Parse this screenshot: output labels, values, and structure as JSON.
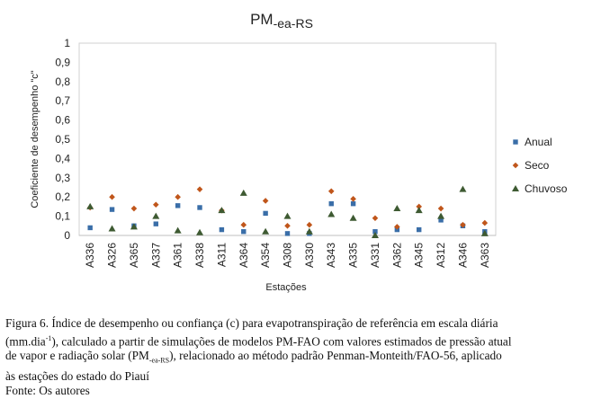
{
  "chart_data": {
    "type": "scatter",
    "title": "PM",
    "title_sub": "-ea-RS",
    "xlabel": "Estações",
    "ylabel": "Coeficiente de desempenho \"c\"",
    "ylim": [
      0,
      1
    ],
    "yticks": [
      "0",
      "0,1",
      "0,2",
      "0,3",
      "0,4",
      "0,5",
      "0,6",
      "0,7",
      "0,8",
      "0,9",
      "1"
    ],
    "legend_position": "right",
    "grid": false,
    "categories": [
      "A336",
      "A326",
      "A365",
      "A337",
      "A361",
      "A338",
      "A311",
      "A364",
      "A354",
      "A308",
      "A330",
      "A343",
      "A335",
      "A331",
      "A362",
      "A345",
      "A312",
      "A346",
      "A363"
    ],
    "series": [
      {
        "name": "Anual",
        "marker": "square",
        "color": "#3a6ea8",
        "values": [
          0.04,
          0.135,
          0.05,
          0.06,
          0.155,
          0.145,
          0.03,
          0.02,
          0.115,
          0.01,
          0.01,
          0.165,
          0.165,
          0.02,
          0.03,
          0.03,
          0.08,
          0.05,
          0.02
        ]
      },
      {
        "name": "Seco",
        "marker": "diamond",
        "color": "#c0561b",
        "values": [
          0.145,
          0.2,
          0.14,
          0.16,
          0.2,
          0.24,
          0.13,
          0.055,
          0.18,
          0.05,
          0.055,
          0.23,
          0.19,
          0.09,
          0.045,
          0.15,
          0.14,
          0.055,
          0.065
        ]
      },
      {
        "name": "Chuvoso",
        "marker": "triangle",
        "color": "#3e5a32",
        "values": [
          0.15,
          0.035,
          0.045,
          0.1,
          0.025,
          0.015,
          0.13,
          0.22,
          0.02,
          0.1,
          0.02,
          0.11,
          0.09,
          0.0,
          0.14,
          0.13,
          0.1,
          0.24,
          0.01
        ]
      }
    ]
  },
  "caption": {
    "line1_a": "Figura 6. Índice de desempenho ou confiança (c) para evapotranspiração de referência em escala diária",
    "line1_b": "(mm.dia",
    "line1_sup": "-1",
    "line1_c": "), calculado a partir de simulações de modelos PM-FAO com valores estimados de pressão atual",
    "line2_a": "de vapor e radiação solar (PM",
    "line2_sub": "-ea-RS",
    "line2_b": "), relacionado ao método padrão Penman-Monteith/FAO-56, aplicado",
    "line3": "às estações do estado do Piauí",
    "source": "Fonte: Os autores"
  }
}
